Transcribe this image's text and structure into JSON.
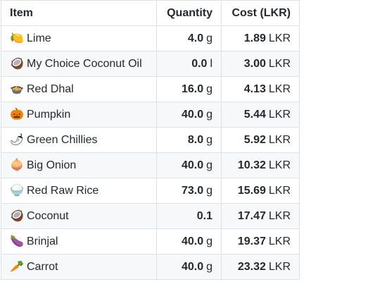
{
  "table": {
    "headers": {
      "item": "Item",
      "quantity": "Quantity",
      "cost": "Cost (LKR)"
    },
    "rows": [
      {
        "icon": "🍋",
        "icon_name": "lime-icon",
        "name": "Lime",
        "qty": "4.0",
        "qty_unit": "g",
        "cost": "1.89",
        "cost_unit": "LKR"
      },
      {
        "icon": "🥥",
        "icon_name": "coconut-icon",
        "name": "My Choice Coconut Oil",
        "qty": "0.0",
        "qty_unit": "l",
        "cost": "3.00",
        "cost_unit": "LKR"
      },
      {
        "icon": "🍲",
        "icon_name": "stew-pot-icon",
        "name": "Red Dhal",
        "qty": "16.0",
        "qty_unit": "g",
        "cost": "4.13",
        "cost_unit": "LKR"
      },
      {
        "icon": "🎃",
        "icon_name": "pumpkin-icon",
        "name": "Pumpkin",
        "qty": "40.0",
        "qty_unit": "g",
        "cost": "5.44",
        "cost_unit": "LKR"
      },
      {
        "icon": "🌶",
        "icon_name": "chilli-icon",
        "name": "Green Chillies",
        "qty": "8.0",
        "qty_unit": "g",
        "cost": "5.92",
        "cost_unit": "LKR"
      },
      {
        "icon": "🧅",
        "icon_name": "onion-icon",
        "name": "Big Onion",
        "qty": "40.0",
        "qty_unit": "g",
        "cost": "10.32",
        "cost_unit": "LKR"
      },
      {
        "icon": "🍚",
        "icon_name": "rice-bowl-icon",
        "name": "Red Raw Rice",
        "qty": "73.0",
        "qty_unit": "g",
        "cost": "15.69",
        "cost_unit": "LKR"
      },
      {
        "icon": "🥥",
        "icon_name": "coconut-icon",
        "name": "Coconut",
        "qty": "0.1",
        "qty_unit": "",
        "cost": "17.47",
        "cost_unit": "LKR"
      },
      {
        "icon": "🍆",
        "icon_name": "eggplant-icon",
        "name": "Brinjal",
        "qty": "40.0",
        "qty_unit": "g",
        "cost": "19.37",
        "cost_unit": "LKR"
      },
      {
        "icon": "🥕",
        "icon_name": "carrot-icon",
        "name": "Carrot",
        "qty": "40.0",
        "qty_unit": "g",
        "cost": "23.32",
        "cost_unit": "LKR"
      }
    ]
  }
}
